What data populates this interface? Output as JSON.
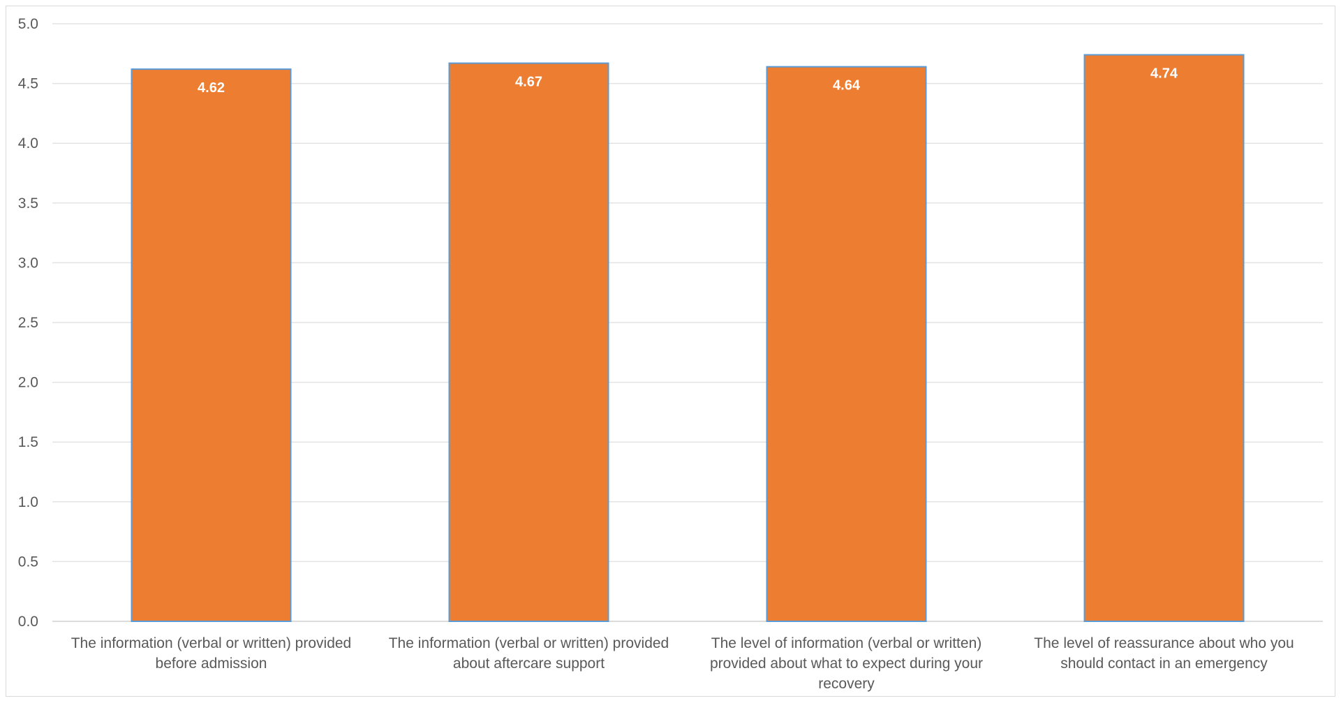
{
  "chart_data": {
    "type": "bar",
    "title": "",
    "xlabel": "",
    "ylabel": "",
    "ylim": [
      0,
      5
    ],
    "yticks": [
      "0.0",
      "0.5",
      "1.0",
      "1.5",
      "2.0",
      "2.5",
      "3.0",
      "3.5",
      "4.0",
      "4.5",
      "5.0"
    ],
    "grid": true,
    "categories": [
      [
        "The information (verbal or written) provided",
        "before admission"
      ],
      [
        "The information (verbal or written) provided",
        "about aftercare support"
      ],
      [
        "The level of information (verbal or written)",
        "provided about what to expect during your",
        "recovery"
      ],
      [
        "The level of reassurance about who you",
        "should contact in an emergency"
      ]
    ],
    "values": [
      4.62,
      4.67,
      4.64,
      4.74
    ],
    "data_labels": [
      "4.62",
      "4.67",
      "4.64",
      "4.74"
    ],
    "bar_color": "#ED7D31",
    "bar_border_color": "#5B9BD5"
  }
}
